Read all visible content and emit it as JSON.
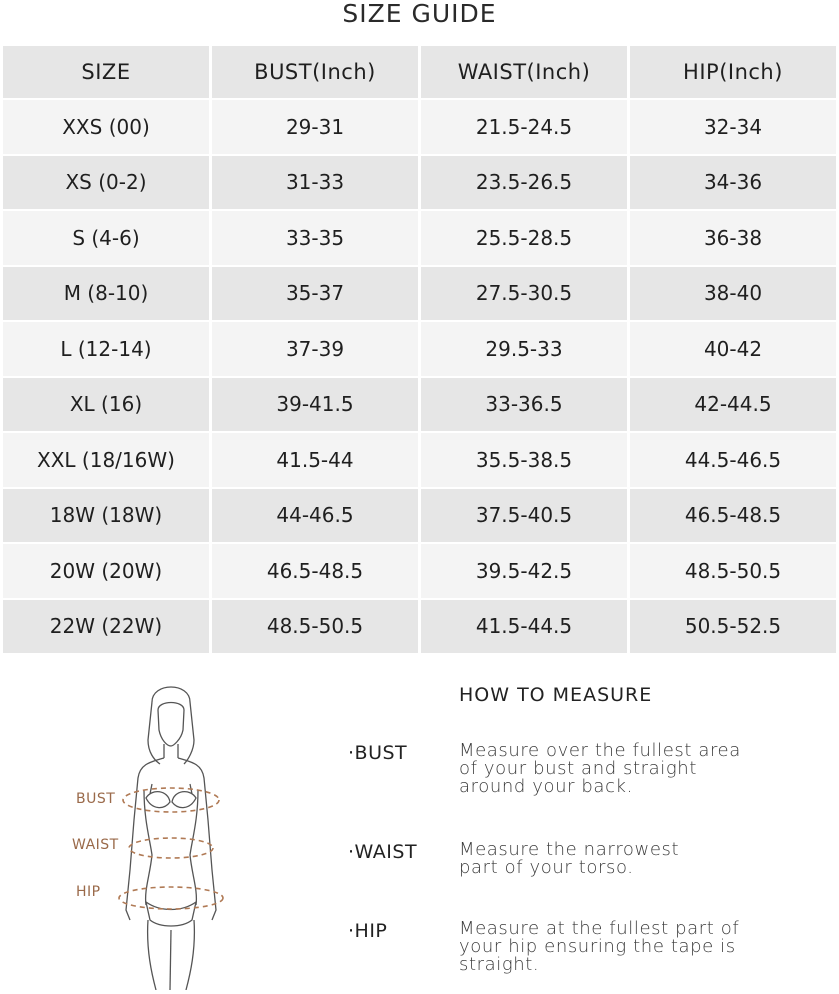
{
  "title": "SIZE GUIDE",
  "table": {
    "headers": [
      "SIZE",
      "BUST(Inch)",
      "WAIST(Inch)",
      "HIP(Inch)"
    ],
    "rows": [
      [
        "XXS (00)",
        "29-31",
        "21.5-24.5",
        "32-34"
      ],
      [
        "XS (0-2)",
        "31-33",
        "23.5-26.5",
        "34-36"
      ],
      [
        "S (4-6)",
        "33-35",
        "25.5-28.5",
        "36-38"
      ],
      [
        "M (8-10)",
        "35-37",
        "27.5-30.5",
        "38-40"
      ],
      [
        "L (12-14)",
        "37-39",
        "29.5-33",
        "40-42"
      ],
      [
        "XL (16)",
        "39-41.5",
        "33-36.5",
        "42-44.5"
      ],
      [
        "XXL (18/16W)",
        "41.5-44",
        "35.5-38.5",
        "44.5-46.5"
      ],
      [
        "18W (18W)",
        "44-46.5",
        "37.5-40.5",
        "46.5-48.5"
      ],
      [
        "20W (20W)",
        "46.5-48.5",
        "39.5-42.5",
        "48.5-50.5"
      ],
      [
        "22W (22W)",
        "48.5-50.5",
        "41.5-44.5",
        "50.5-52.5"
      ]
    ]
  },
  "figure": {
    "labels": {
      "bust": "BUST",
      "waist": "WAIST",
      "hip": "HIP"
    },
    "accent_color": "#b07a55"
  },
  "how_to": {
    "heading": "HOW TO MEASURE",
    "items": [
      {
        "term": "·BUST",
        "desc_lines": [
          "Measure over the fullest area",
          "of your bust and straight",
          "around your back."
        ]
      },
      {
        "term": "·WAIST",
        "desc_lines": [
          "Measure the narrowest",
          "part of your torso."
        ]
      },
      {
        "term": "·HIP",
        "desc_lines": [
          "Measure at the fullest part of",
          "your hip ensuring the tape is",
          "straight."
        ]
      }
    ]
  }
}
